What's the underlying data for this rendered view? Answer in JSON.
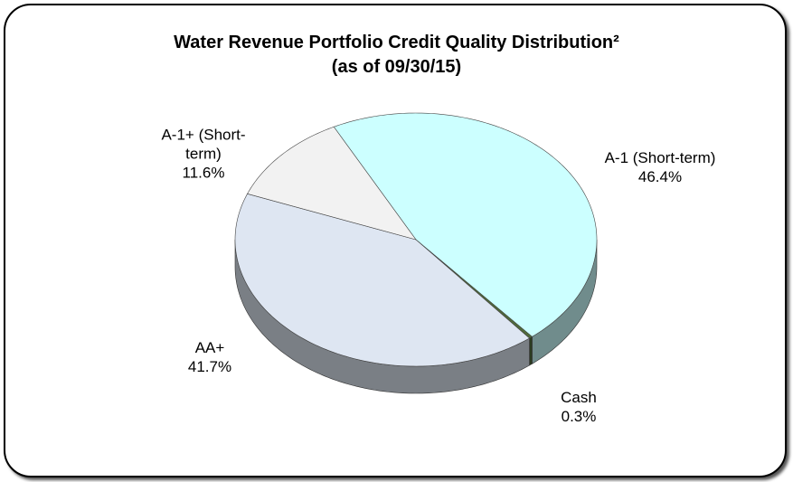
{
  "chart_data": {
    "type": "pie",
    "title": "Water Revenue Portfolio Credit Quality Distribution²",
    "subtitle": "(as of 09/30/15)",
    "categories": [
      "A-1 (Short-term)",
      "Cash",
      "AA+",
      "A-1+ (Short-term)"
    ],
    "values": [
      46.4,
      0.3,
      41.7,
      11.6
    ],
    "value_labels": [
      "46.4%",
      "0.3%",
      "41.7%",
      "11.6%"
    ],
    "colors": [
      "#ccffff",
      "#4f6b3a",
      "#dee6f2",
      "#f2f2f2"
    ]
  }
}
